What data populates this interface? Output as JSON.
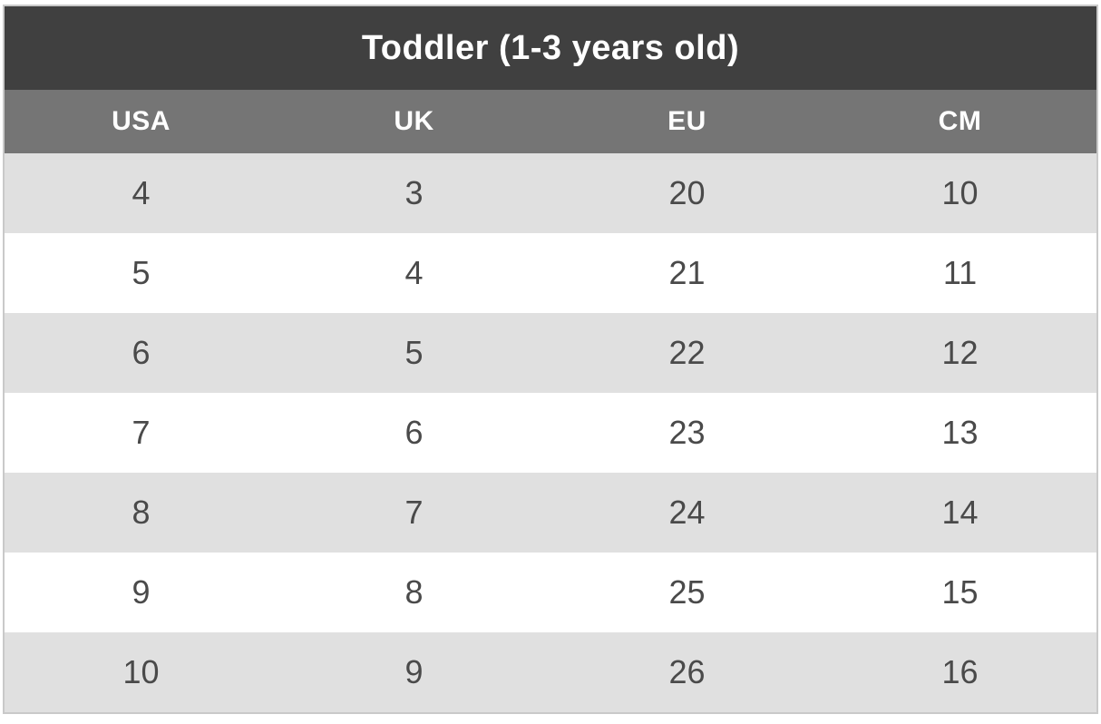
{
  "table": {
    "title": "Toddler (1-3 years old)",
    "columns": [
      "USA",
      "UK",
      "EU",
      "CM"
    ],
    "rows": [
      [
        "4",
        "3",
        "20",
        "10"
      ],
      [
        "5",
        "4",
        "21",
        "11"
      ],
      [
        "6",
        "5",
        "22",
        "12"
      ],
      [
        "7",
        "6",
        "23",
        "13"
      ],
      [
        "8",
        "7",
        "24",
        "14"
      ],
      [
        "9",
        "8",
        "25",
        "15"
      ],
      [
        "10",
        "9",
        "26",
        "16"
      ]
    ]
  },
  "colors": {
    "title_bg": "#404040",
    "header_bg": "#757575",
    "row_alt_bg": "#e0e0e0",
    "row_bg": "#ffffff",
    "border": "#c9c9c9",
    "title_text": "#ffffff",
    "header_text": "#ffffff",
    "cell_text": "#4a4a4a"
  },
  "chart_data": {
    "type": "table",
    "title": "Toddler (1-3 years old)",
    "columns": [
      "USA",
      "UK",
      "EU",
      "CM"
    ],
    "rows": [
      [
        4,
        3,
        20,
        10
      ],
      [
        5,
        4,
        21,
        11
      ],
      [
        6,
        5,
        22,
        12
      ],
      [
        7,
        6,
        23,
        13
      ],
      [
        8,
        7,
        24,
        14
      ],
      [
        9,
        8,
        25,
        15
      ],
      [
        10,
        9,
        26,
        16
      ]
    ],
    "layout_hints": {
      "striped_rows": true,
      "text_alignment": "center",
      "title_position": "top"
    }
  }
}
